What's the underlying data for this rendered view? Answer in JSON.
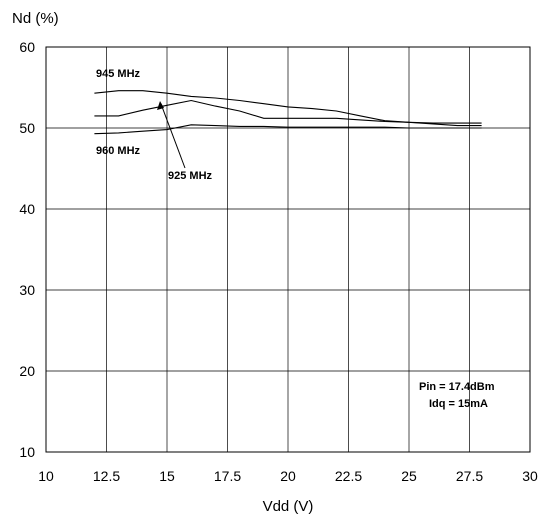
{
  "chart_data": {
    "type": "line",
    "xlabel": "Vdd (V)",
    "ylabel": "Nd (%)",
    "xlim": [
      10,
      30
    ],
    "ylim": [
      10,
      60
    ],
    "xticks": [
      "10",
      "12.5",
      "15",
      "17.5",
      "20",
      "22.5",
      "25",
      "27.5",
      "30"
    ],
    "yticks": [
      "10",
      "20",
      "30",
      "40",
      "50",
      "60"
    ],
    "grid": true,
    "series": [
      {
        "name": "945 MHz",
        "x": [
          12,
          13,
          14,
          15,
          16,
          17,
          18,
          19,
          20,
          21,
          22,
          23,
          24,
          25,
          26,
          27,
          28
        ],
        "y": [
          54.3,
          54.6,
          54.6,
          54.3,
          53.9,
          53.7,
          53.4,
          53.0,
          52.6,
          52.4,
          52.1,
          51.5,
          50.9,
          50.7,
          50.6,
          50.6,
          50.6
        ]
      },
      {
        "name": "925 MHz",
        "x": [
          12,
          13,
          14,
          15,
          16,
          17,
          18,
          19,
          20,
          21,
          22,
          23,
          24,
          25,
          26,
          27,
          28
        ],
        "y": [
          51.5,
          51.5,
          52.2,
          52.8,
          53.4,
          52.7,
          52.1,
          51.2,
          51.2,
          51.2,
          51.2,
          51.0,
          50.8,
          50.7,
          50.5,
          50.3,
          50.3
        ]
      },
      {
        "name": "960 MHz",
        "x": [
          12,
          13,
          14,
          15,
          16,
          17,
          18,
          19,
          20,
          21,
          22,
          23,
          24,
          25,
          26,
          27,
          28
        ],
        "y": [
          49.3,
          49.4,
          49.6,
          49.8,
          50.4,
          50.3,
          50.2,
          50.2,
          50.1,
          50.1,
          50.1,
          50.1,
          50.1,
          50.0,
          50.0,
          50.0,
          50.0
        ]
      }
    ],
    "annotations": [
      "945 MHz",
      "960 MHz",
      "925 MHz",
      "Pin = 17.4dBm",
      "Idq = 15mA"
    ]
  }
}
